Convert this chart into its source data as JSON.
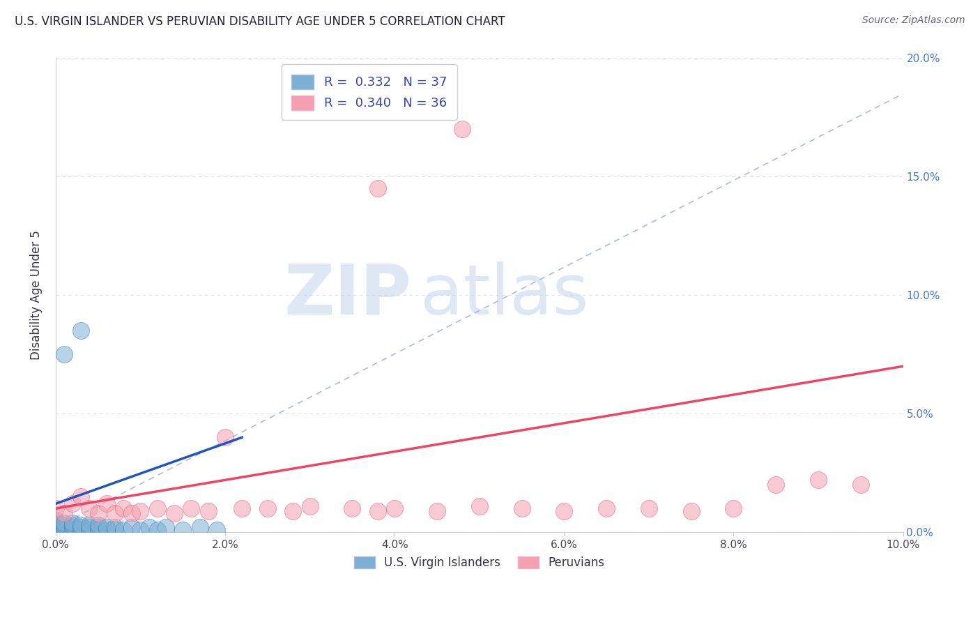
{
  "title": "U.S. VIRGIN ISLANDER VS PERUVIAN DISABILITY AGE UNDER 5 CORRELATION CHART",
  "source": "Source: ZipAtlas.com",
  "ylabel": "Disability Age Under 5",
  "xlim": [
    0.0,
    0.1
  ],
  "ylim": [
    0.0,
    0.2
  ],
  "xticks": [
    0.0,
    0.02,
    0.04,
    0.06,
    0.08,
    0.1
  ],
  "yticks": [
    0.0,
    0.05,
    0.1,
    0.15,
    0.2
  ],
  "virgin_islanders_R": 0.332,
  "virgin_islanders_N": 37,
  "peruvians_R": 0.34,
  "peruvians_N": 36,
  "virgin_color": "#7BAFD4",
  "peruvian_color": "#F4A0B0",
  "virgin_edge_color": "#5588BB",
  "peruvian_edge_color": "#E07088",
  "virgin_line_color": "#2255BB",
  "peruvian_line_color": "#EE4466",
  "ref_line_color": "#AABBDD",
  "background_color": "#FFFFFF",
  "watermark_zip": "ZIP",
  "watermark_atlas": "atlas",
  "watermark_color_zip": "#C8D8EE",
  "watermark_color_atlas": "#C8D8EE",
  "ytick_color": "#4477CC",
  "xtick_color": "#444455",
  "title_color": "#222233",
  "source_color": "#666677",
  "ylabel_color": "#333344",
  "legend_text_color": "#3344BB",
  "bottom_legend_color": "#333344",
  "virgin_x": [
    0.0,
    0.0,
    0.0,
    0.0,
    0.0,
    0.001,
    0.001,
    0.001,
    0.001,
    0.002,
    0.002,
    0.002,
    0.002,
    0.003,
    0.003,
    0.003,
    0.004,
    0.004,
    0.004,
    0.005,
    0.005,
    0.005,
    0.006,
    0.006,
    0.007,
    0.007,
    0.008,
    0.009,
    0.01,
    0.011,
    0.012,
    0.013,
    0.015,
    0.017,
    0.019,
    0.003,
    0.001
  ],
  "virgin_y": [
    0.001,
    0.002,
    0.003,
    0.004,
    0.005,
    0.001,
    0.002,
    0.003,
    0.004,
    0.001,
    0.002,
    0.003,
    0.004,
    0.001,
    0.002,
    0.003,
    0.001,
    0.002,
    0.003,
    0.001,
    0.002,
    0.003,
    0.001,
    0.002,
    0.001,
    0.002,
    0.001,
    0.002,
    0.001,
    0.002,
    0.001,
    0.002,
    0.001,
    0.002,
    0.001,
    0.085,
    0.075
  ],
  "peruvian_x": [
    0.0,
    0.001,
    0.002,
    0.003,
    0.004,
    0.005,
    0.006,
    0.007,
    0.008,
    0.009,
    0.01,
    0.012,
    0.014,
    0.016,
    0.018,
    0.02,
    0.022,
    0.025,
    0.028,
    0.03,
    0.035,
    0.038,
    0.04,
    0.045,
    0.05,
    0.055,
    0.06,
    0.065,
    0.07,
    0.075,
    0.08,
    0.085,
    0.09,
    0.095,
    0.048,
    0.038
  ],
  "peruvian_y": [
    0.01,
    0.008,
    0.012,
    0.015,
    0.01,
    0.008,
    0.012,
    0.008,
    0.01,
    0.008,
    0.009,
    0.01,
    0.008,
    0.01,
    0.009,
    0.04,
    0.01,
    0.01,
    0.009,
    0.011,
    0.01,
    0.009,
    0.01,
    0.009,
    0.011,
    0.01,
    0.009,
    0.01,
    0.01,
    0.009,
    0.01,
    0.02,
    0.022,
    0.02,
    0.17,
    0.145
  ]
}
